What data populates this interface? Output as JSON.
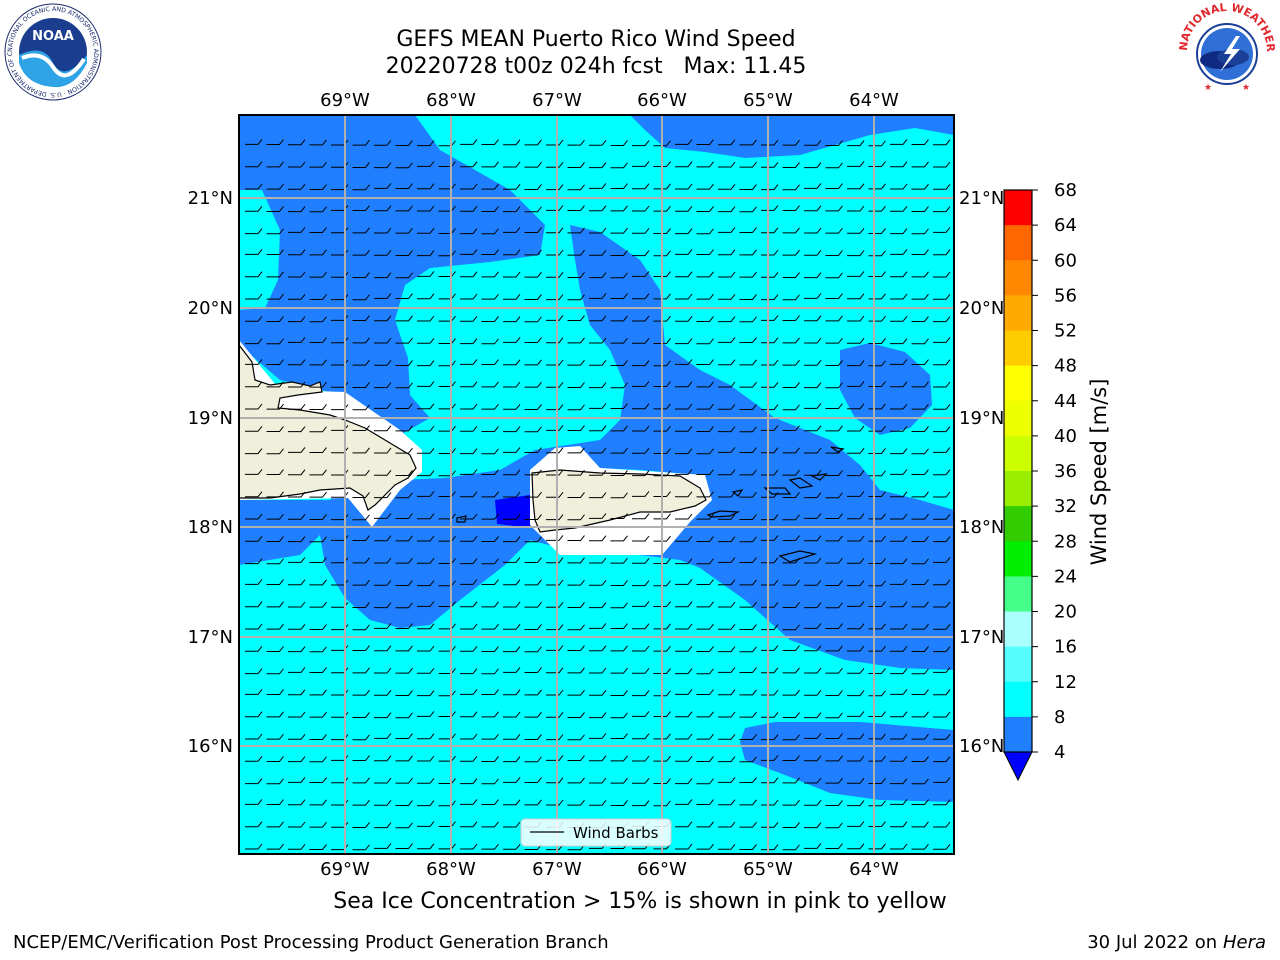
{
  "header": {
    "title_line1": "GEFS MEAN Puerto Rico Wind Speed",
    "title_line2": "20220728 t00z 024h fcst   Max: 11.45"
  },
  "map": {
    "lon_labels": [
      "69°W",
      "68°W",
      "67°W",
      "66°W",
      "65°W",
      "64°W"
    ],
    "lat_labels": [
      "21°N",
      "20°N",
      "19°N",
      "18°N",
      "17°N",
      "16°N"
    ],
    "legend_label": "Wind Barbs",
    "colors": {
      "band_4_8": "#1f7fff",
      "band_8_12": "#00ffff",
      "below_4": "#0000ff",
      "land": "#efefdc"
    }
  },
  "colorbar": {
    "label": "Wind Speed [m/s]",
    "ticks": [
      "68",
      "64",
      "60",
      "56",
      "52",
      "48",
      "44",
      "40",
      "36",
      "32",
      "28",
      "24",
      "20",
      "16",
      "12",
      "8",
      "4"
    ],
    "colors": [
      "#ff0000",
      "#ff3300",
      "#ff6600",
      "#ff8800",
      "#ffaa00",
      "#ffcc00",
      "#ffff00",
      "#eeff00",
      "#ccff00",
      "#99ee00",
      "#33cc00",
      "#00ee00",
      "#44ff88",
      "#aaffff",
      "#55ffff",
      "#00ffff",
      "#1f7fff"
    ],
    "extend_color": "#0000ff"
  },
  "bottom_note": "Sea Ice Concentration > 15% is shown in pink to yellow",
  "footer": {
    "left": "NCEP/EMC/Verification Post Processing Product Generation Branch",
    "date": "30 Jul 2022 on ",
    "machine": "Hera"
  },
  "logos": {
    "left": "NOAA",
    "left_ring": "NATIONAL OCEANIC AND ATMOSPHERIC ADMINISTRATION · U.S. DEPARTMENT OF COMMERCE",
    "right_ring": "NATIONAL WEATHER SERVICE"
  }
}
